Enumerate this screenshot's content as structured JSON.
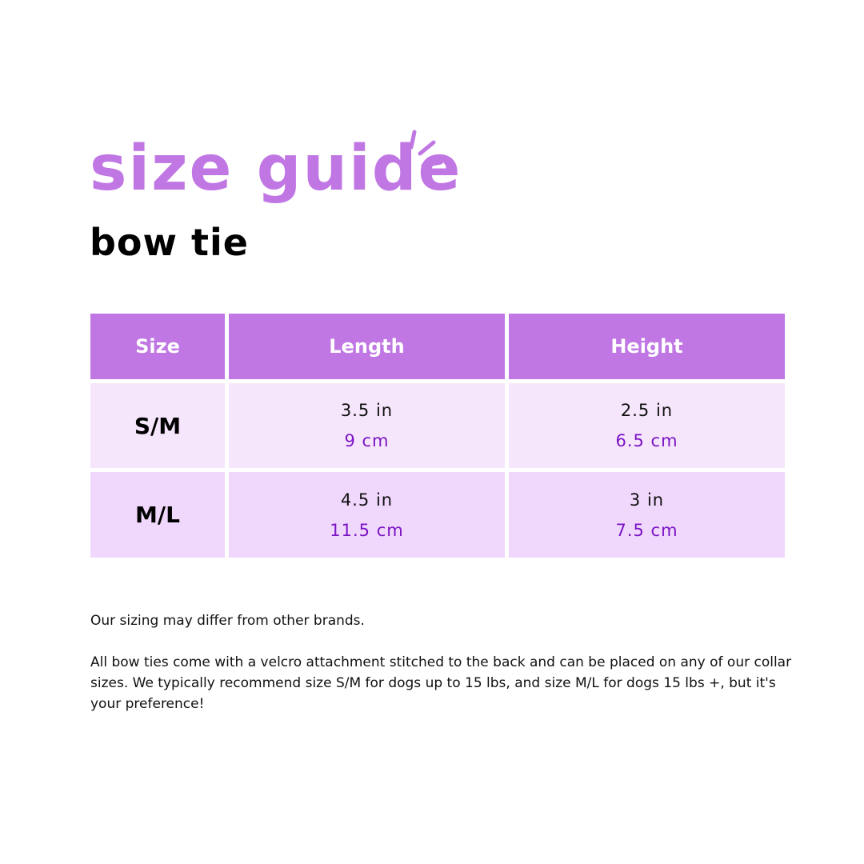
{
  "title": "size guide",
  "subtitle": "bow tie",
  "colors": {
    "accent": "#c077e4",
    "row1": "#f6e6fc",
    "row2": "#f0d8fc",
    "metric": "#7b14c4"
  },
  "table": {
    "headers": [
      "Size",
      "Length",
      "Height"
    ],
    "rows": [
      {
        "size": "S/M",
        "length_in": "3.5 in",
        "length_cm": "9 cm",
        "height_in": "2.5 in",
        "height_cm": "6.5 cm"
      },
      {
        "size": "M/L",
        "length_in": "4.5 in",
        "length_cm": "11.5 cm",
        "height_in": "3 in",
        "height_cm": "7.5 cm"
      }
    ]
  },
  "notes": [
    "Our sizing may differ from other brands.",
    "All bow ties come with a velcro attachment stitched to the back and can be placed on any of our collar sizes.  We typically recommend size S/M for dogs up to 15 lbs, and size M/L for dogs 15 lbs +, but it's your preference!"
  ]
}
